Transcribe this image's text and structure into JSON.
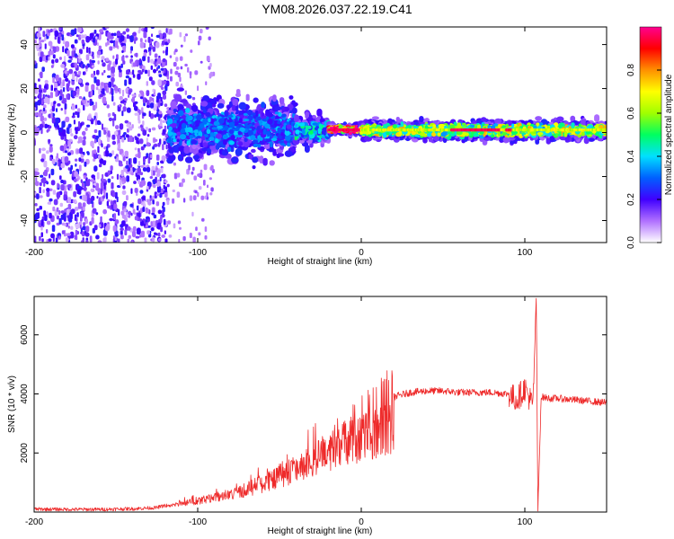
{
  "title": "YM08.2026.037.22.19.C41",
  "colors": {
    "snr_line": "#ee2a2a",
    "axis": "#000000",
    "background": "#ffffff"
  },
  "chart_data": [
    {
      "type": "heatmap",
      "name": "spectrogram",
      "xlabel": "Height of straight line (km)",
      "ylabel": "Frequency (Hz)",
      "xlim": [
        -200,
        150
      ],
      "ylim": [
        -50,
        48
      ],
      "xticks": [
        -200,
        -100,
        0,
        100
      ],
      "yticks": [
        -40,
        -20,
        0,
        20,
        40
      ],
      "colorbar": {
        "label": "Normalized spectral amplitude",
        "range": [
          0.0,
          1.0
        ],
        "ticks": [
          0.0,
          0.2,
          0.4,
          0.6,
          0.8
        ],
        "colormap": [
          "#ffffff",
          "#b070ff",
          "#4000ff",
          "#0060ff",
          "#00e0ff",
          "#00ff60",
          "#a0ff00",
          "#ffff00",
          "#ff9000",
          "#ff0000",
          "#ff0090"
        ]
      },
      "regions": [
        {
          "x": [
            -200,
            -118
          ],
          "freq": [
            -50,
            48
          ],
          "amplitude": 0.12,
          "description": "scattered noise"
        },
        {
          "x": [
            -118,
            -40
          ],
          "freq": [
            -8,
            12
          ],
          "amplitude": 0.3
        },
        {
          "x": [
            -40,
            -20
          ],
          "freq": [
            -4,
            6
          ],
          "amplitude": 0.4
        },
        {
          "x": [
            -20,
            0
          ],
          "freq": [
            0,
            3
          ],
          "amplitude": 0.95
        },
        {
          "x": [
            0,
            150
          ],
          "freq": [
            -2,
            4
          ],
          "amplitude": 0.6
        }
      ]
    },
    {
      "type": "line",
      "name": "snr",
      "xlabel": "Height of straight line (km)",
      "ylabel": "SNR (10 * v/v)",
      "xlim": [
        -200,
        150
      ],
      "ylim": [
        0,
        7300
      ],
      "xticks": [
        -200,
        -100,
        0,
        100
      ],
      "yticks": [
        2000,
        4000,
        6000
      ],
      "series": [
        {
          "name": "SNR",
          "x": [
            -200,
            -180,
            -160,
            -140,
            -125,
            -115,
            -100,
            -90,
            -80,
            -70,
            -60,
            -50,
            -40,
            -30,
            -20,
            -10,
            0,
            10,
            20,
            30,
            40,
            50,
            60,
            70,
            80,
            90,
            95,
            100,
            105,
            107,
            108,
            110,
            115,
            120,
            130,
            140,
            150
          ],
          "values": [
            100,
            90,
            90,
            110,
            150,
            300,
            500,
            650,
            800,
            1000,
            1300,
            1600,
            1900,
            2300,
            2700,
            3000,
            3300,
            3650,
            3900,
            4050,
            4100,
            4100,
            4050,
            4050,
            4050,
            4000,
            3800,
            4200,
            3600,
            7300,
            50,
            3900,
            3850,
            3850,
            3800,
            3750,
            3700
          ]
        }
      ]
    }
  ]
}
